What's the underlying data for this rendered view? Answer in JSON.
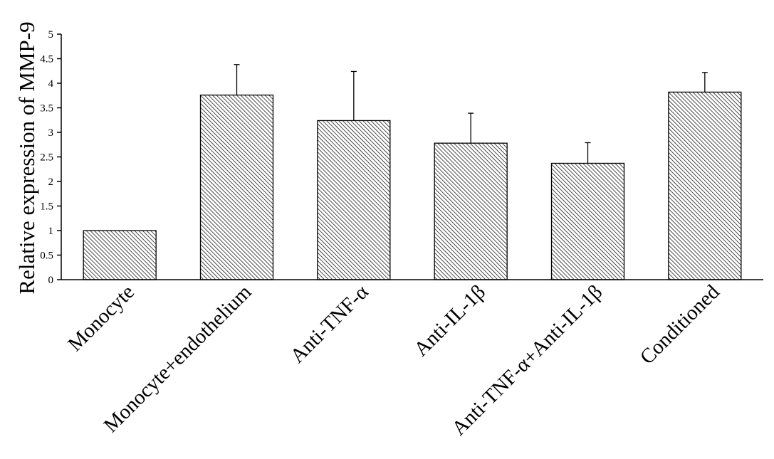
{
  "chart_data": {
    "type": "bar",
    "ylabel": "Relative expression of MMP-9",
    "xlabel": "",
    "ylim": [
      0,
      5
    ],
    "yticks": [
      "0",
      "0.5",
      "1",
      "1.5",
      "2",
      "2.5",
      "3",
      "3.5",
      "4",
      "4.5",
      "5"
    ],
    "grid": false,
    "legend": false,
    "bar_fill": "diagonal-hatch",
    "categories": [
      "Monocyte",
      "Monocyte+endothelium",
      "Anti-TNF-α",
      "Anti-IL-1β",
      "Anti-TNF-α+Anti-IL-1β",
      "Conditioned"
    ],
    "values": [
      1.0,
      3.76,
      3.24,
      2.78,
      2.37,
      3.82
    ],
    "error_upper": [
      0.0,
      0.62,
      1.0,
      0.61,
      0.42,
      0.4
    ],
    "colors": {
      "bar_stroke": "#000000",
      "hatch": "#000000",
      "background": "#ffffff"
    }
  }
}
